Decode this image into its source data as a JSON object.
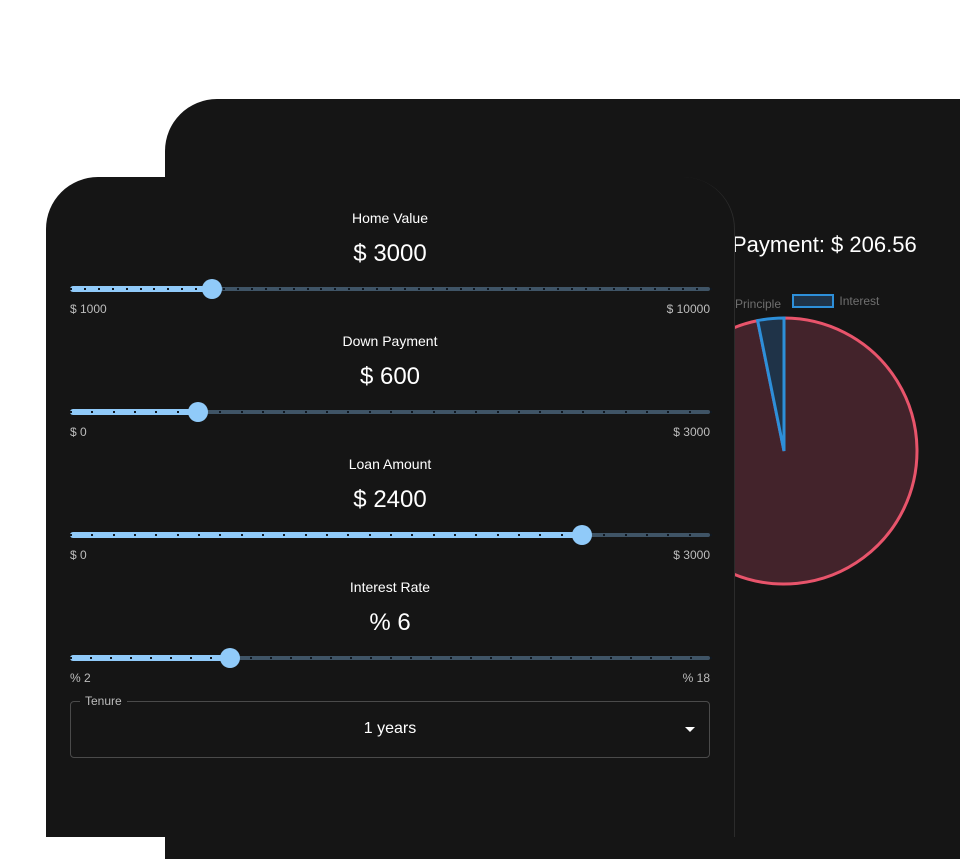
{
  "summary": {
    "payment_text": "Payment: $ 206.56",
    "legend": [
      {
        "label": "Principle",
        "color": "#e8546b"
      },
      {
        "label": "Interest",
        "color": "#2d8fd9"
      }
    ],
    "pie": {
      "principal": 2400,
      "interest": 78.72
    }
  },
  "calculator": {
    "sliders": [
      {
        "label": "Home Value",
        "value_text": "$ 3000",
        "min_text": "$ 1000",
        "max_text": "$ 10000",
        "fraction": 0.222,
        "marks": 46
      },
      {
        "label": "Down Payment",
        "value_text": "$ 600",
        "min_text": "$ 0",
        "max_text": "$ 3000",
        "fraction": 0.2,
        "marks": 30
      },
      {
        "label": "Loan Amount",
        "value_text": "$ 2400",
        "min_text": "$ 0",
        "max_text": "$ 3000",
        "fraction": 0.8,
        "marks": 30
      },
      {
        "label": "Interest Rate",
        "value_text": "% 6",
        "min_text": "% 2",
        "max_text": "% 18",
        "fraction": 0.25,
        "marks": 32
      }
    ],
    "tenure": {
      "label": "Tenure",
      "value": "1 years"
    }
  }
}
